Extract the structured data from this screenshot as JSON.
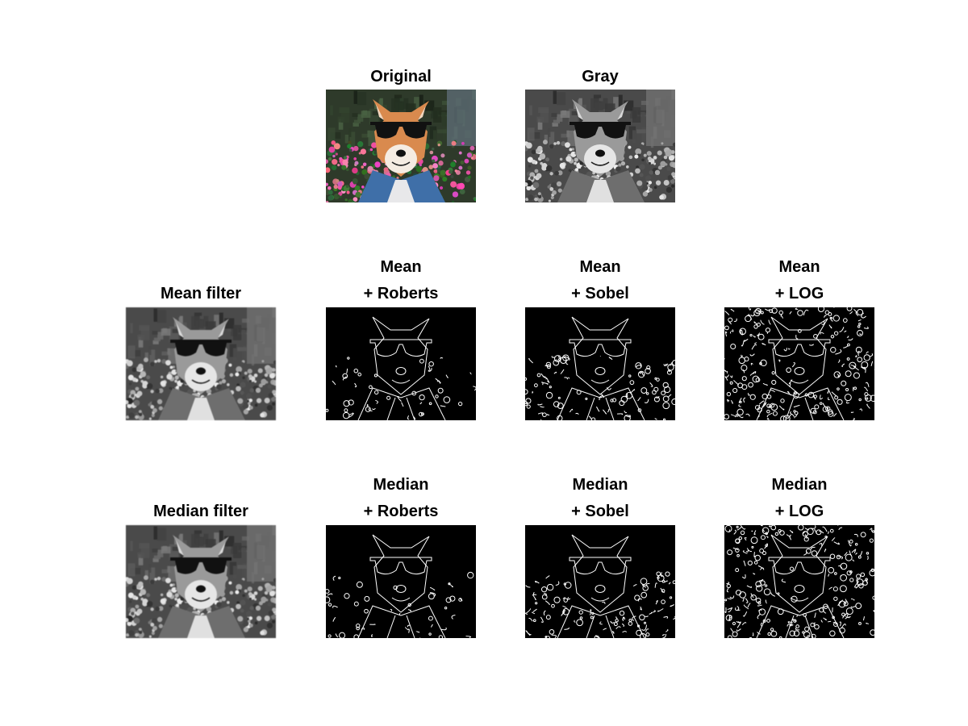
{
  "figure": {
    "background": "#ffffff",
    "panels": [
      {
        "id": "original",
        "title": [
          "Original"
        ],
        "kind": "color"
      },
      {
        "id": "gray",
        "title": [
          "Gray"
        ],
        "kind": "gray"
      },
      {
        "id": "mean-filter",
        "title": [
          "Mean filter"
        ],
        "kind": "gray-blur"
      },
      {
        "id": "mean-roberts",
        "title": [
          "Mean",
          "+ Roberts"
        ],
        "kind": "edges-sparse"
      },
      {
        "id": "mean-sobel",
        "title": [
          "Mean",
          "+ Sobel"
        ],
        "kind": "edges-medium"
      },
      {
        "id": "mean-log",
        "title": [
          "Mean",
          "+ LOG"
        ],
        "kind": "edges-dense"
      },
      {
        "id": "median-filter",
        "title": [
          "Median filter"
        ],
        "kind": "gray-blur"
      },
      {
        "id": "median-roberts",
        "title": [
          "Median",
          "+ Roberts"
        ],
        "kind": "edges-sparse"
      },
      {
        "id": "median-sobel",
        "title": [
          "Median",
          "+ Sobel"
        ],
        "kind": "edges-medium"
      },
      {
        "id": "median-log",
        "title": [
          "Median",
          "+ LOG"
        ],
        "kind": "edges-dense"
      }
    ]
  }
}
